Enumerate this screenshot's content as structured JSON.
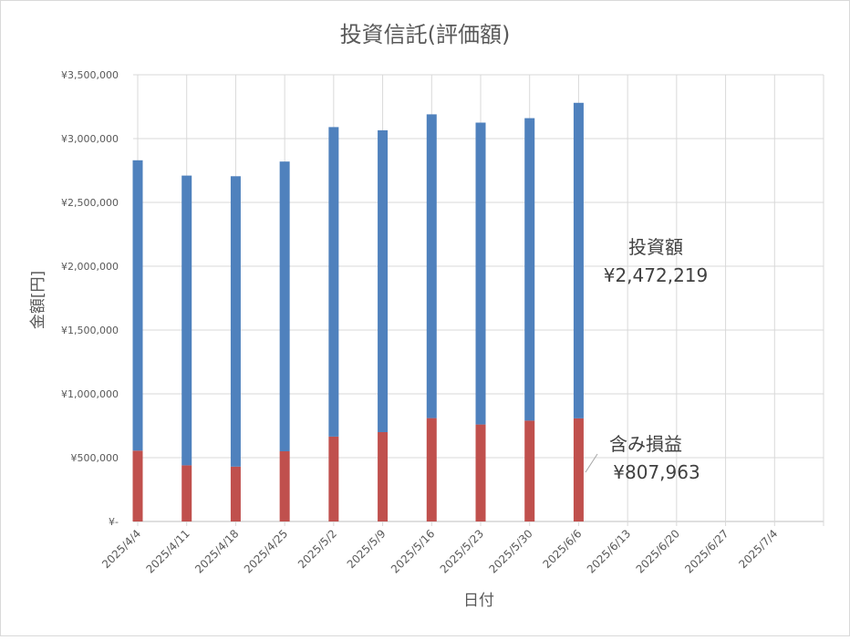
{
  "chart_data": {
    "type": "bar",
    "stacked": true,
    "title": "投資信託(評価額)",
    "xlabel": "日付",
    "ylabel": "金額[円]",
    "ylim": [
      0,
      3500000
    ],
    "y_ticks": [
      {
        "value": 0,
        "label": "¥-"
      },
      {
        "value": 500000,
        "label": "¥500,000"
      },
      {
        "value": 1000000,
        "label": "¥1,000,000"
      },
      {
        "value": 1500000,
        "label": "¥1,500,000"
      },
      {
        "value": 2000000,
        "label": "¥2,000,000"
      },
      {
        "value": 2500000,
        "label": "¥2,500,000"
      },
      {
        "value": 3000000,
        "label": "¥3,000,000"
      },
      {
        "value": 3500000,
        "label": "¥3,500,000"
      }
    ],
    "categories": [
      "2025/4/4",
      "2025/4/11",
      "2025/4/18",
      "2025/4/25",
      "2025/5/2",
      "2025/5/9",
      "2025/5/16",
      "2025/5/23",
      "2025/5/30",
      "2025/6/6",
      "2025/6/13",
      "2025/6/20",
      "2025/6/27",
      "2025/7/4"
    ],
    "series": [
      {
        "values": [
          555000,
          440000,
          430000,
          550000,
          665000,
          700000,
          810000,
          760000,
          790000,
          807963,
          null,
          null,
          null,
          null
        ],
        "color": "#c0504d"
      },
      {
        "values": [
          2275000,
          2270000,
          2275000,
          2270000,
          2425000,
          2365000,
          2380000,
          2365000,
          2370000,
          2472219,
          null,
          null,
          null,
          null
        ],
        "color": "#4f81bd"
      }
    ],
    "grid": true,
    "annotations": [
      {
        "label": "投資額",
        "value": "¥2,472,219"
      },
      {
        "label": "含み損益",
        "value": "¥807,963"
      }
    ]
  }
}
